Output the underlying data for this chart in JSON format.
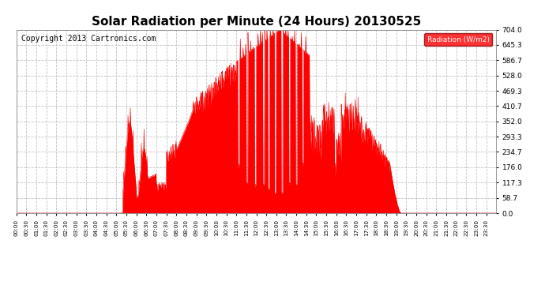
{
  "title": "Solar Radiation per Minute (24 Hours) 20130525",
  "copyright": "Copyright 2013 Cartronics.com",
  "legend_label": "Radiation (W/m2)",
  "y_ticks": [
    0.0,
    58.7,
    117.3,
    176.0,
    234.7,
    293.3,
    352.0,
    410.7,
    469.3,
    528.0,
    586.7,
    645.3,
    704.0
  ],
  "y_max": 704.0,
  "y_min": 0.0,
  "fill_color": "#ff0000",
  "background_color": "#ffffff",
  "grid_color": "#bbbbbb",
  "title_fontsize": 11,
  "copyright_fontsize": 7,
  "total_minutes": 1440,
  "sunrise_min": 315,
  "sunset_min": 1155,
  "peak_min": 790,
  "peak_val": 704.0
}
